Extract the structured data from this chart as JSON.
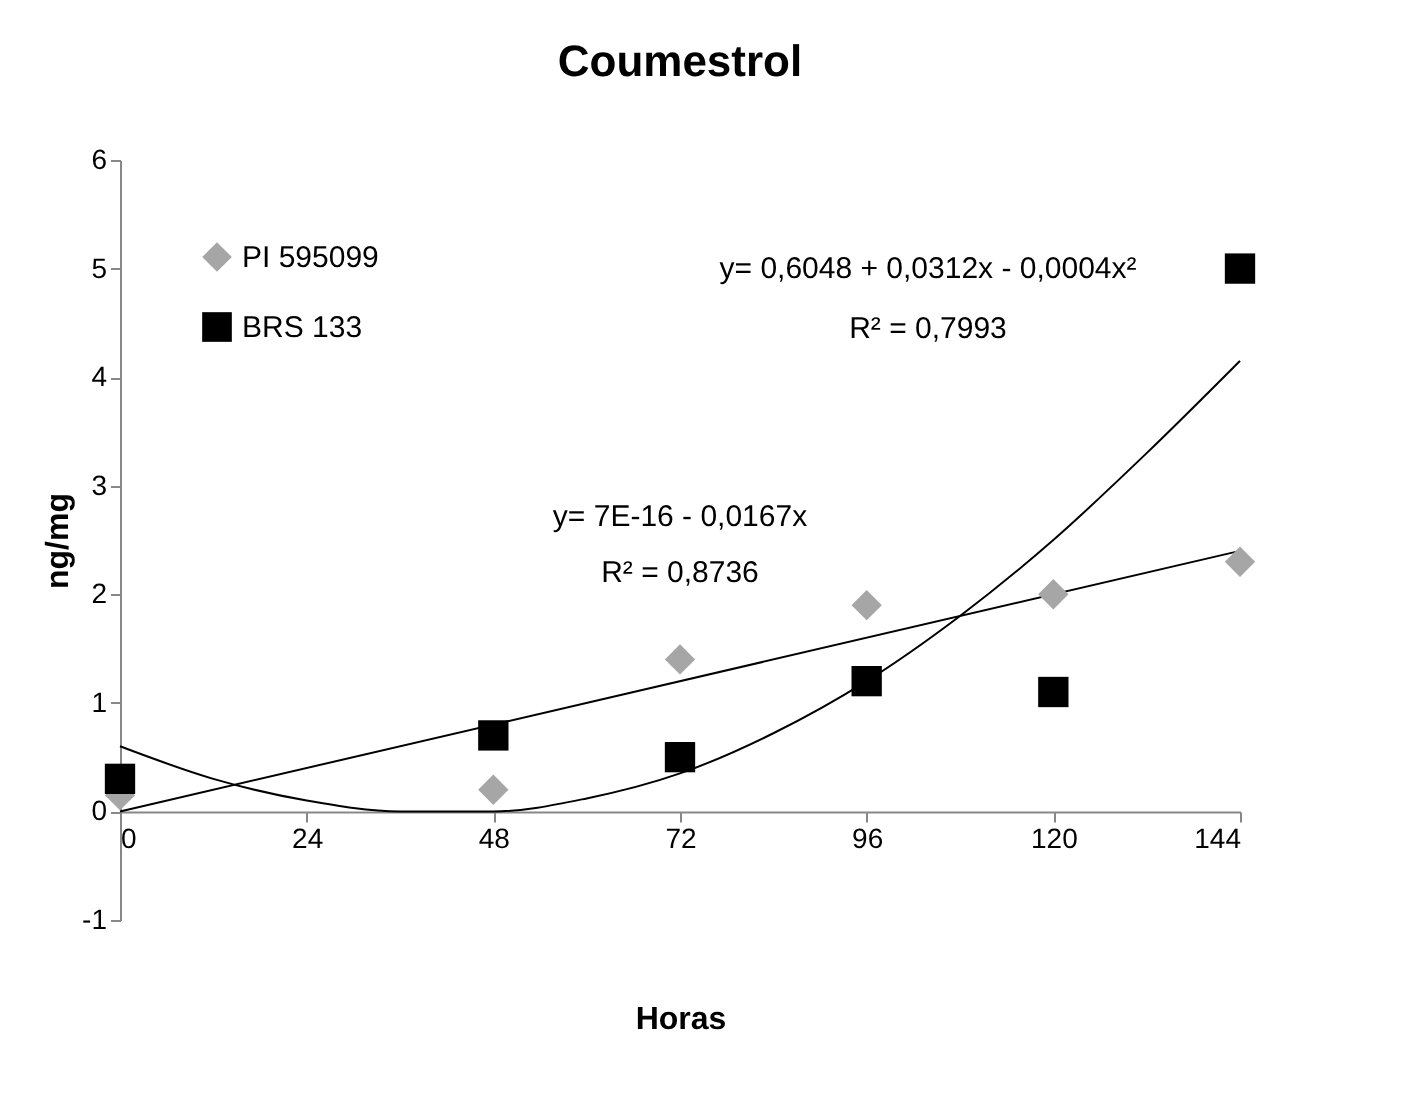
{
  "chart_data": {
    "type": "scatter",
    "title": "Coumestrol",
    "xlabel": "Horas",
    "ylabel": "ng/mg",
    "x": [
      0,
      48,
      72,
      96,
      120,
      144
    ],
    "series": [
      {
        "name": "PI 595099",
        "color": "#a6a6a6",
        "marker": "diamond",
        "values": [
          0.15,
          0.2,
          1.4,
          1.9,
          2.0,
          2.3
        ]
      },
      {
        "name": "BRS 133",
        "color": "#000000",
        "marker": "square",
        "values": [
          0.3,
          0.7,
          0.5,
          1.2,
          1.1,
          5.0
        ]
      },
      {
        "type": "line",
        "color": "#000000",
        "marker": "none",
        "line_style": "solid",
        "x": [
          0,
          144
        ],
        "values": [
          0,
          2.4
        ]
      },
      {
        "type": "line",
        "color": "#000000",
        "marker": "none",
        "line_style": "solid",
        "x": [
          0,
          12,
          24,
          36,
          48,
          60,
          72,
          84,
          96,
          108,
          120,
          132,
          144
        ],
        "values": [
          0.6,
          0.3,
          0.1,
          0.0,
          0.0,
          0.12,
          0.35,
          0.72,
          1.2,
          1.8,
          2.5,
          3.3,
          4.15
        ]
      }
    ],
    "annotations": [
      "y= 7E-16 - 0,0167x",
      "R² = 0,8736",
      "y= 0,6048 + 0,0312x - 0,0004x²",
      "R² = 0,7993"
    ],
    "xlim": [
      0,
      144
    ],
    "xticks": [
      0,
      24,
      48,
      72,
      96,
      120,
      144
    ],
    "ylim": [
      -1,
      6
    ],
    "yticks": [
      {
        "value": -1,
        "label": "-1"
      },
      0,
      1,
      2,
      3,
      4,
      5,
      6
    ],
    "grid": false,
    "legend": "top left"
  }
}
